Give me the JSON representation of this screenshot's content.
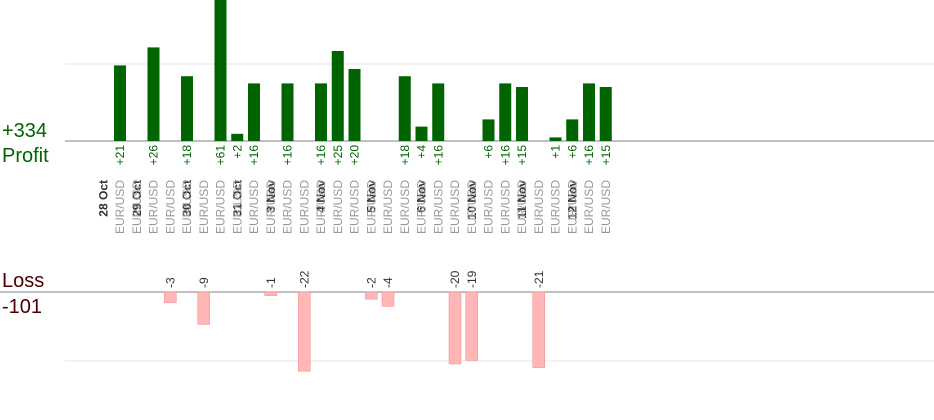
{
  "summary": {
    "profit_total": "+334",
    "profit_label": "Profit",
    "loss_label": "Loss",
    "loss_total": "-101"
  },
  "colors": {
    "profit_bar": "#006400",
    "loss_bar": "#ffb6b6",
    "profit_text": "#006400",
    "loss_text": "#333333",
    "axis": "#808080",
    "grid": "#e6e6e6"
  },
  "chart_data": {
    "type": "bar",
    "x_axis": "trades grouped by day",
    "days": [
      "28 Oct",
      "29 Oct",
      "30 Oct",
      "31 Oct",
      "3 Nov",
      "4 Nov",
      "5 Nov",
      "6 Nov",
      "10 Nov",
      "11 Nov",
      "12 Nov"
    ],
    "trades": [
      {
        "day": "28 Oct",
        "symbol": "EUR/USD",
        "value": 21
      },
      {
        "day": "28 Oct",
        "symbol": "EUR/USD",
        "value": null
      },
      {
        "day": "29 Oct",
        "symbol": "EUR/USD",
        "value": 26
      },
      {
        "day": "29 Oct",
        "symbol": "EUR/USD",
        "value": -3
      },
      {
        "day": "29 Oct",
        "symbol": "EUR/USD",
        "value": 18
      },
      {
        "day": "30 Oct",
        "symbol": "EUR/USD",
        "value": -9
      },
      {
        "day": "30 Oct",
        "symbol": "EUR/USD",
        "value": 61
      },
      {
        "day": "30 Oct",
        "symbol": "EUR/USD",
        "value": 2
      },
      {
        "day": "31 Oct",
        "symbol": "EUR/USD",
        "value": 16
      },
      {
        "day": "31 Oct",
        "symbol": "EUR/USD",
        "value": -1
      },
      {
        "day": "3 Nov",
        "symbol": "EUR/USD",
        "value": 16
      },
      {
        "day": "3 Nov",
        "symbol": "EUR/USD",
        "value": -22
      },
      {
        "day": "3 Nov",
        "symbol": "EUR/USD",
        "value": 16
      },
      {
        "day": "4 Nov",
        "symbol": "EUR/USD",
        "value": 25
      },
      {
        "day": "4 Nov",
        "symbol": "EUR/USD",
        "value": 20
      },
      {
        "day": "4 Nov",
        "symbol": "EUR/USD",
        "value": -2
      },
      {
        "day": "5 Nov",
        "symbol": "EUR/USD",
        "value": -4
      },
      {
        "day": "5 Nov",
        "symbol": "EUR/USD",
        "value": 18
      },
      {
        "day": "5 Nov",
        "symbol": "EUR/USD",
        "value": 4
      },
      {
        "day": "6 Nov",
        "symbol": "EUR/USD",
        "value": 16
      },
      {
        "day": "6 Nov",
        "symbol": "EUR/USD",
        "value": -20
      },
      {
        "day": "6 Nov",
        "symbol": "EUR/USD",
        "value": -19
      },
      {
        "day": "10 Nov",
        "symbol": "EUR/USD",
        "value": 6
      },
      {
        "day": "10 Nov",
        "symbol": "EUR/USD",
        "value": 16
      },
      {
        "day": "10 Nov",
        "symbol": "EUR/USD",
        "value": 15
      },
      {
        "day": "11 Nov",
        "symbol": "EUR/USD",
        "value": -21
      },
      {
        "day": "11 Nov",
        "symbol": "EUR/USD",
        "value": 1
      },
      {
        "day": "11 Nov",
        "symbol": "EUR/USD",
        "value": 6
      },
      {
        "day": "12 Nov",
        "symbol": "EUR/USD",
        "value": 16
      },
      {
        "day": "12 Nov",
        "symbol": "EUR/USD",
        "value": 15
      }
    ],
    "profit_axis_max": 18,
    "loss_axis_max": 20,
    "bars_clipped_at_top": true,
    "grid": true
  }
}
